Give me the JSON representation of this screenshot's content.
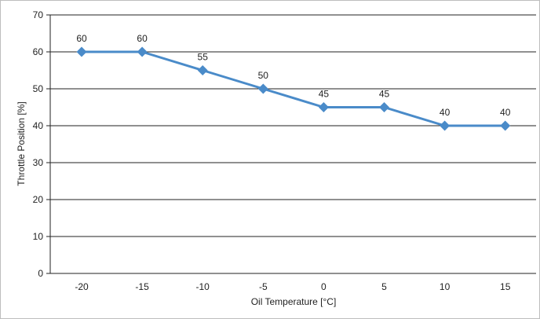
{
  "chart_data": {
    "type": "line",
    "title": "",
    "xlabel": "Oil Temperature [°C]",
    "ylabel": "Throttle Position [%]",
    "x": [
      "-20",
      "-15",
      "-10",
      "-5",
      "0",
      "5",
      "10",
      "15"
    ],
    "series": [
      {
        "values": [
          60,
          60,
          55,
          50,
          45,
          45,
          40,
          40
        ],
        "data_labels": [
          "60",
          "60",
          "55",
          "50",
          "45",
          "45",
          "40",
          "40"
        ]
      }
    ],
    "ylim": [
      0,
      70
    ],
    "yticks": [
      "0",
      "10",
      "20",
      "30",
      "40",
      "50",
      "60",
      "70"
    ],
    "grid": "horizontal",
    "legend": "none",
    "colors": {
      "series": "#4a8bc9",
      "grid": "#222222"
    },
    "marker": "diamond"
  }
}
